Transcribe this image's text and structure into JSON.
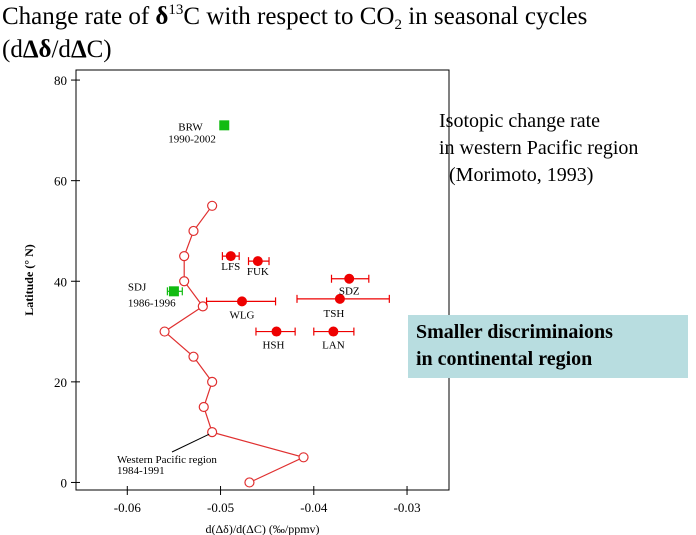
{
  "title": {
    "line1_a": "Change rate of ",
    "line1_delta": "δ",
    "line1_sup": "13",
    "line1_b": "C with respect to CO",
    "line1_sub": "2",
    "line1_c": " in seasonal cycles",
    "line2_a": "(d",
    "line2_Delta1": "Δδ",
    "line2_b": "/d",
    "line2_Delta2": "Δ",
    "line2_c": "C)"
  },
  "annotation": {
    "line1": "Isotopic change rate",
    "line2": "in western Pacific region",
    "line3": "  (Morimoto, 1993)"
  },
  "callout": {
    "line1": "Smaller discriminaions",
    "line2": "in continental region"
  },
  "colors": {
    "curve": "#e03030",
    "station": "#ee0000",
    "green": "#11bb11",
    "callout_bg": "#b8dde0",
    "axis": "#000000"
  },
  "chart_data": {
    "type": "scatter",
    "xlabel": "d(Δδ)/d(ΔC) (‰/ppmv)",
    "ylabel": "Latitude (° N)",
    "xlim": [
      -0.0655,
      -0.0255
    ],
    "ylim": [
      -1.5,
      82
    ],
    "xticks": [
      -0.06,
      -0.05,
      -0.04,
      -0.03
    ],
    "xtick_labels": [
      "-0.06",
      "-0.05",
      "-0.04",
      "-0.03"
    ],
    "yticks": [
      0,
      20,
      40,
      60,
      80
    ],
    "ytick_labels": [
      "0",
      "20",
      "40",
      "60",
      "80"
    ],
    "grid": false,
    "series": [
      {
        "name": "Western Pacific region",
        "label": [
          "Western Pacific region",
          "1984-1991"
        ],
        "style": "line-open-circles",
        "points": [
          {
            "x": -0.0469,
            "y": 0
          },
          {
            "x": -0.0411,
            "y": 5
          },
          {
            "x": -0.0509,
            "y": 10
          },
          {
            "x": -0.0518,
            "y": 15
          },
          {
            "x": -0.0509,
            "y": 20
          },
          {
            "x": -0.0529,
            "y": 25
          },
          {
            "x": -0.056,
            "y": 30
          },
          {
            "x": -0.0519,
            "y": 35
          },
          {
            "x": -0.0539,
            "y": 40
          },
          {
            "x": -0.0539,
            "y": 45
          },
          {
            "x": -0.0529,
            "y": 50
          },
          {
            "x": -0.0509,
            "y": 55
          }
        ]
      },
      {
        "name": "Stations",
        "style": "filled-circles-with-xerr",
        "points": [
          {
            "label": "LFS",
            "x": -0.0489,
            "y": 45,
            "xerr_low": -0.0498,
            "xerr_high": -0.048
          },
          {
            "label": "FUK",
            "x": -0.046,
            "y": 44,
            "xerr_low": -0.047,
            "xerr_high": -0.0448
          },
          {
            "label": "SDZ",
            "x": -0.0362,
            "y": 40.5,
            "xerr_low": -0.0381,
            "xerr_high": -0.0341
          },
          {
            "label": "TSH",
            "x": -0.0372,
            "y": 36.5,
            "xerr_low": -0.0418,
            "xerr_high": -0.0319
          },
          {
            "label": "WLG",
            "x": -0.0477,
            "y": 36,
            "xerr_low": -0.0515,
            "xerr_high": -0.0441
          },
          {
            "label": "HSH",
            "x": -0.044,
            "y": 30,
            "xerr_low": -0.0462,
            "xerr_high": -0.042
          },
          {
            "label": "LAN",
            "x": -0.0379,
            "y": 30,
            "xerr_low": -0.04,
            "xerr_high": -0.0357
          }
        ]
      },
      {
        "name": "Green stations",
        "style": "filled-squares",
        "points": [
          {
            "label": "BRW",
            "label2": "1990-2002",
            "x": -0.0496,
            "y": 71
          },
          {
            "label": "SDJ",
            "label2": "1986-1996",
            "x": -0.055,
            "y": 38,
            "xerr_low": -0.0557,
            "xerr_high": -0.0541
          }
        ]
      }
    ]
  }
}
